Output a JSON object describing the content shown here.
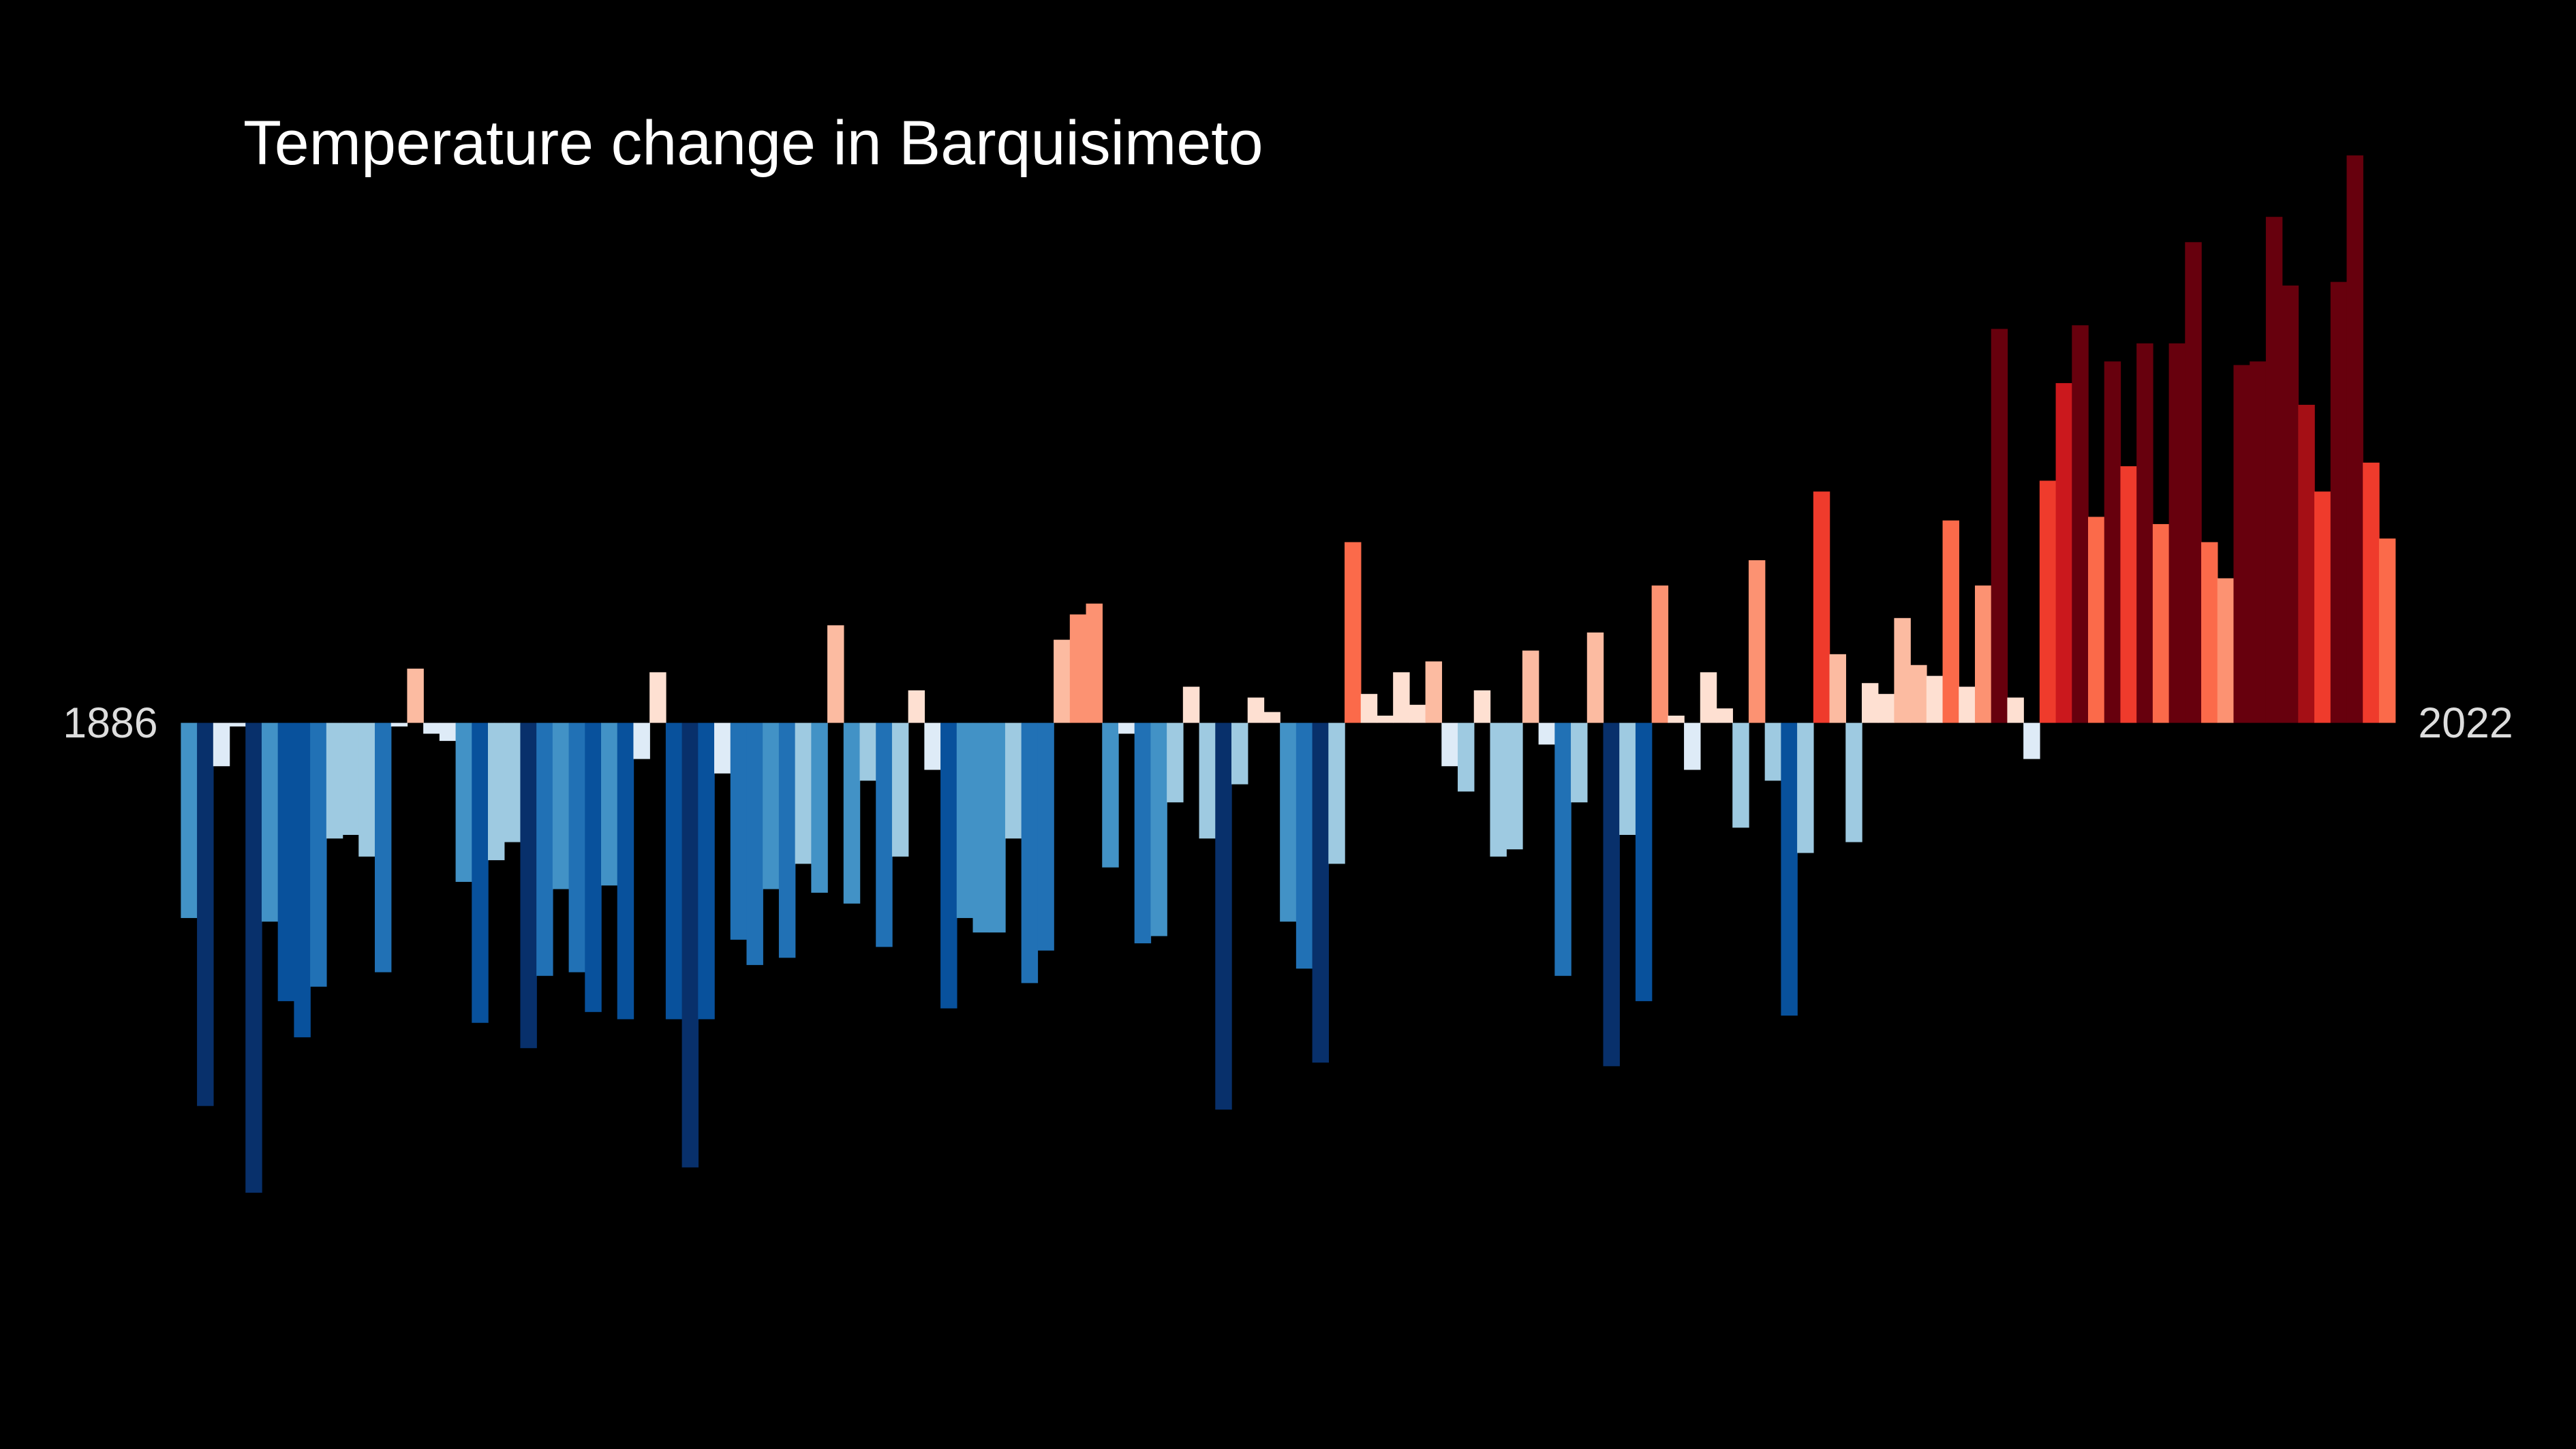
{
  "chart_data": {
    "type": "bar",
    "title": "Temperature change in Barquisimeto",
    "categories": [
      "1886",
      null,
      null,
      null,
      null,
      null,
      null,
      null,
      null,
      null,
      null,
      null,
      null,
      null,
      null,
      null,
      null,
      null,
      null,
      null,
      null,
      null,
      null,
      null,
      null,
      null,
      null,
      null,
      null,
      null,
      null,
      null,
      null,
      null,
      null,
      null,
      null,
      null,
      null,
      null,
      null,
      null,
      null,
      null,
      null,
      null,
      null,
      null,
      null,
      null,
      null,
      null,
      null,
      null,
      null,
      null,
      null,
      null,
      null,
      null,
      null,
      null,
      null,
      null,
      null,
      null,
      null,
      null,
      null,
      null,
      null,
      null,
      null,
      null,
      null,
      null,
      null,
      null,
      null,
      null,
      null,
      null,
      null,
      null,
      null,
      null,
      null,
      null,
      null,
      null,
      null,
      null,
      null,
      null,
      null,
      null,
      null,
      null,
      null,
      null,
      null,
      null,
      null,
      null,
      null,
      null,
      null,
      null,
      null,
      null,
      null,
      null,
      null,
      null,
      null,
      null,
      null,
      null,
      null,
      null,
      null,
      null,
      null,
      null,
      null,
      null,
      null,
      null,
      null,
      null,
      null,
      null,
      null,
      null,
      null,
      null,
      "2022"
    ],
    "values": [
      -0.54,
      -1.06,
      -0.12,
      -0.01,
      -1.3,
      -0.55,
      -0.77,
      -0.87,
      -0.73,
      -0.32,
      -0.31,
      -0.37,
      -0.69,
      -0.01,
      0.15,
      -0.03,
      -0.05,
      -0.44,
      -0.83,
      -0.38,
      -0.33,
      -0.9,
      -0.7,
      -0.46,
      -0.69,
      -0.8,
      -0.45,
      -0.82,
      -0.1,
      0.14,
      -0.82,
      -1.23,
      -0.82,
      -0.14,
      -0.6,
      -0.67,
      -0.46,
      -0.65,
      -0.39,
      -0.47,
      0.27,
      -0.5,
      -0.16,
      -0.62,
      -0.37,
      0.09,
      -0.13,
      -0.79,
      -0.54,
      -0.58,
      -0.58,
      -0.32,
      -0.72,
      -0.63,
      0.23,
      0.3,
      0.33,
      -0.4,
      -0.03,
      -0.61,
      -0.59,
      -0.22,
      0.1,
      -0.32,
      -1.07,
      -0.17,
      0.07,
      0.03,
      -0.55,
      -0.68,
      -0.94,
      -0.39,
      0.5,
      0.08,
      0.02,
      0.14,
      0.05,
      0.17,
      -0.12,
      -0.19,
      0.09,
      -0.37,
      -0.35,
      0.2,
      -0.06,
      -0.7,
      -0.22,
      0.25,
      -0.95,
      -0.31,
      -0.77,
      0.38,
      0.02,
      -0.13,
      0.14,
      0.04,
      -0.29,
      0.45,
      -0.16,
      -0.81,
      -0.36,
      0.64,
      0.19,
      -0.33,
      0.11,
      0.08,
      0.29,
      0.16,
      0.13,
      0.56,
      0.1,
      0.38,
      1.09,
      0.07,
      -0.1,
      0.67,
      0.94,
      1.1,
      0.57,
      1.0,
      0.71,
      1.05,
      0.55,
      1.05,
      1.33,
      0.5,
      0.4,
      0.99,
      1.0,
      1.4,
      1.21,
      0.88,
      0.64,
      1.22,
      1.57,
      0.72,
      0.51
    ],
    "colors": [
      "#4292c6",
      "#08306b",
      "#deebf7",
      "#deebf7",
      "#08306b",
      "#4292c6",
      "#08519c",
      "#08519c",
      "#2171b5",
      "#9ecae1",
      "#9ecae1",
      "#9ecae1",
      "#2171b5",
      "#deebf7",
      "#fcbba1",
      "#deebf7",
      "#deebf7",
      "#4292c6",
      "#08519c",
      "#9ecae1",
      "#9ecae1",
      "#08306b",
      "#2171b5",
      "#4292c6",
      "#2171b5",
      "#08519c",
      "#4292c6",
      "#08519c",
      "#deebf7",
      "#fee0d2",
      "#08519c",
      "#08306b",
      "#08519c",
      "#deebf7",
      "#2171b5",
      "#2171b5",
      "#4292c6",
      "#2171b5",
      "#9ecae1",
      "#4292c6",
      "#fcbba1",
      "#4292c6",
      "#9ecae1",
      "#2171b5",
      "#9ecae1",
      "#fee0d2",
      "#deebf7",
      "#08519c",
      "#4292c6",
      "#4292c6",
      "#4292c6",
      "#9ecae1",
      "#2171b5",
      "#2171b5",
      "#fcbba1",
      "#fc9272",
      "#fc9272",
      "#4292c6",
      "#deebf7",
      "#2171b5",
      "#4292c6",
      "#9ecae1",
      "#fee0d2",
      "#9ecae1",
      "#08306b",
      "#9ecae1",
      "#fee0d2",
      "#fee0d2",
      "#4292c6",
      "#2171b5",
      "#08306b",
      "#9ecae1",
      "#fb6a4a",
      "#fee0d2",
      "#fee0d2",
      "#fee0d2",
      "#fee0d2",
      "#fcbba1",
      "#deebf7",
      "#9ecae1",
      "#fee0d2",
      "#9ecae1",
      "#9ecae1",
      "#fcbba1",
      "#deebf7",
      "#2171b5",
      "#9ecae1",
      "#fcbba1",
      "#08306b",
      "#9ecae1",
      "#08519c",
      "#fc9272",
      "#fee0d2",
      "#deebf7",
      "#fee0d2",
      "#fee0d2",
      "#9ecae1",
      "#fc9272",
      "#9ecae1",
      "#08519c",
      "#9ecae1",
      "#ef3b2c",
      "#fcbba1",
      "#9ecae1",
      "#fee0d2",
      "#fee0d2",
      "#fcbba1",
      "#fcbba1",
      "#fee0d2",
      "#fb6a4a",
      "#fee0d2",
      "#fc9272",
      "#67000d",
      "#fee0d2",
      "#deebf7",
      "#ef3b2c",
      "#cb181d",
      "#67000d",
      "#fb6a4a",
      "#67000d",
      "#ef3b2c",
      "#67000d",
      "#fb6a4a",
      "#67000d",
      "#67000d",
      "#fb6a4a",
      "#fc9272",
      "#67000d",
      "#67000d",
      "#67000d",
      "#67000d",
      "#a50f15",
      "#ef3b2c",
      "#67000d",
      "#67000d",
      "#ef3b2c",
      "#fb6a4a"
    ],
    "ylim": [
      -1.6,
      1.6
    ]
  }
}
